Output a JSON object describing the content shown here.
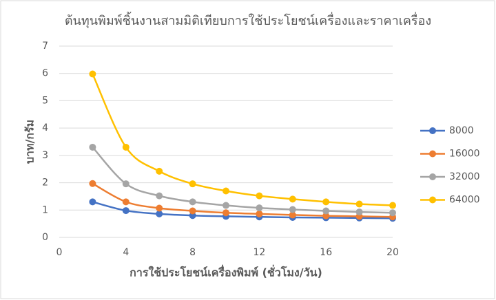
{
  "chart_data": {
    "type": "line",
    "title": "ต้นทุนพิมพ์ชิ้นงานสามมิติเทียบการใช้ประโยชน์เครื่องและราคาเครื่อง",
    "xlabel": "การใช้ประโยชน์เครื่องพิมพ์ (ชั่วโมง/วัน)",
    "ylabel": "บาท/กรัม",
    "x": [
      2,
      4,
      6,
      8,
      10,
      12,
      14,
      16,
      18,
      20
    ],
    "series": [
      {
        "name": "8000",
        "color": "#4472c4",
        "values": [
          1.3,
          0.98,
          0.86,
          0.8,
          0.77,
          0.75,
          0.73,
          0.72,
          0.71,
          0.7
        ]
      },
      {
        "name": "16000",
        "color": "#ed7d31",
        "values": [
          1.97,
          1.3,
          1.07,
          0.97,
          0.9,
          0.86,
          0.82,
          0.79,
          0.77,
          0.75
        ]
      },
      {
        "name": "32000",
        "color": "#a5a5a5",
        "values": [
          3.3,
          1.96,
          1.52,
          1.3,
          1.17,
          1.08,
          1.02,
          0.97,
          0.93,
          0.9
        ]
      },
      {
        "name": "64000",
        "color": "#ffc000",
        "values": [
          5.98,
          3.3,
          2.42,
          1.96,
          1.7,
          1.52,
          1.4,
          1.3,
          1.22,
          1.17
        ]
      }
    ],
    "xlim": [
      0,
      20
    ],
    "xticks": [
      0,
      4,
      8,
      12,
      16,
      20
    ],
    "ylim": [
      0,
      7
    ],
    "yticks": [
      0,
      1,
      2,
      3,
      4,
      5,
      6,
      7
    ],
    "grid": true,
    "legend": "right"
  }
}
